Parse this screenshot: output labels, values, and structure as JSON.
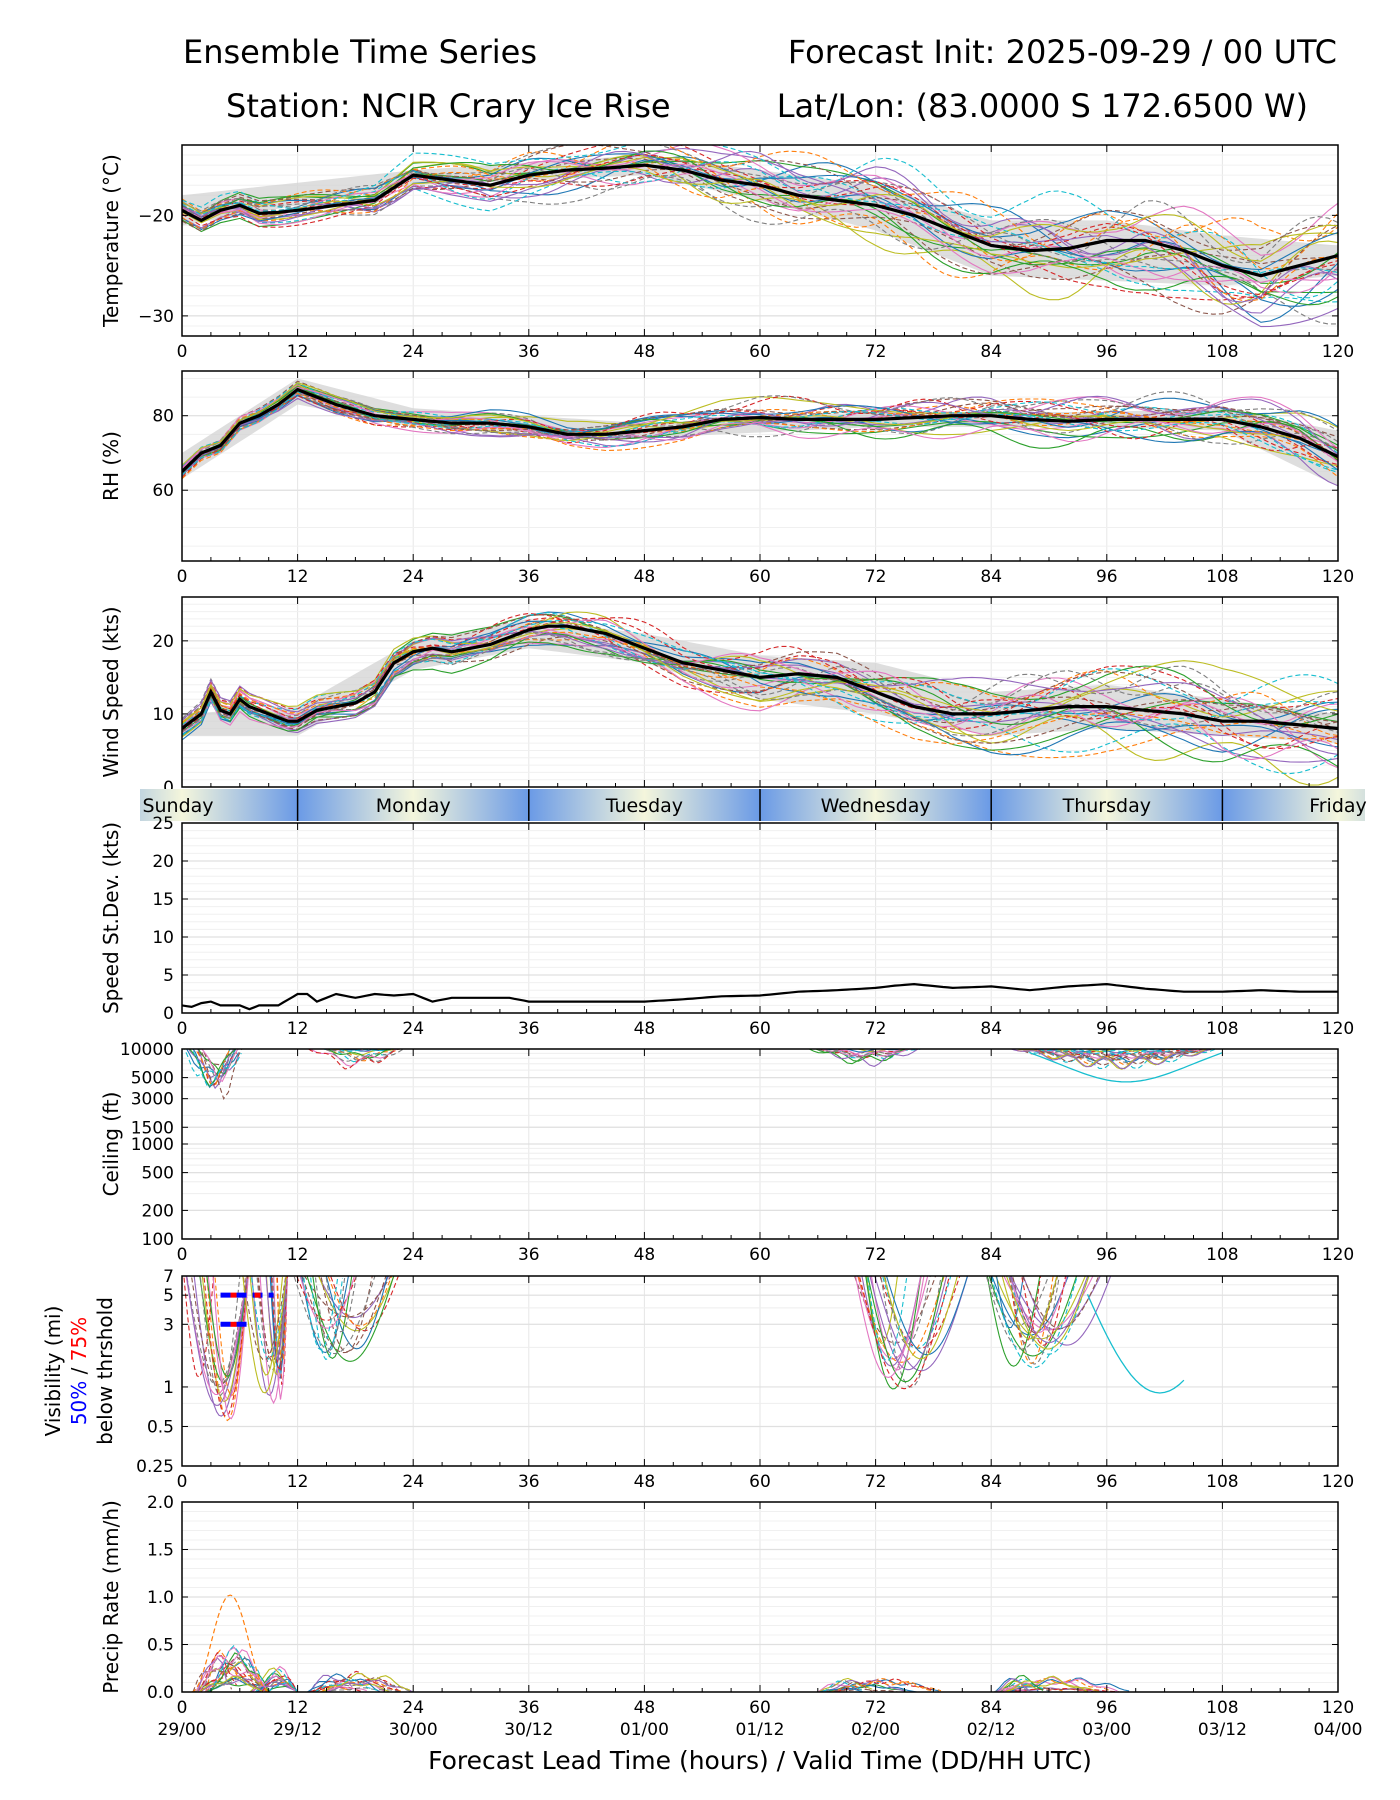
{
  "header": {
    "title": "Ensemble Time Series",
    "init": "Forecast Init: 2025-09-29 / 00 UTC",
    "station": "Station: NCIR Crary Ice Rise",
    "latlon": "Lat/Lon: (83.0000 S 172.6500 W)"
  },
  "colors": {
    "members": [
      "#1f77b4",
      "#ff7f0e",
      "#2ca02c",
      "#d62728",
      "#9467bd",
      "#8c564b",
      "#e377c2",
      "#7f7f7f",
      "#bcbd22",
      "#17becf"
    ],
    "mean": "#000000",
    "spread": "#d3d3d3",
    "day_blue": "#6a9ae6",
    "day_cream": "#f4f6dc",
    "vis50": "#0000ff",
    "vis75": "#ff0000"
  },
  "days": [
    {
      "label": "Sunday",
      "start": -12,
      "end": 12
    },
    {
      "label": "Monday",
      "start": 12,
      "end": 36
    },
    {
      "label": "Tuesday",
      "start": 36,
      "end": 60
    },
    {
      "label": "Wednesday",
      "start": 60,
      "end": 84
    },
    {
      "label": "Thursday",
      "start": 84,
      "end": 108
    },
    {
      "label": "Friday",
      "start": 108,
      "end": 132
    }
  ],
  "chart_data": [
    {
      "type": "line",
      "ylabel": "Temperature (°C)",
      "xlim": [
        0,
        120
      ],
      "ylim": [
        -32,
        -13
      ],
      "yticks": [
        -30,
        -20
      ],
      "ytick_labels": [
        "−30",
        "−20"
      ],
      "ensemble_members": 30,
      "mean": {
        "x": [
          0,
          2,
          4,
          6,
          8,
          10,
          12,
          16,
          20,
          24,
          28,
          32,
          36,
          40,
          44,
          48,
          52,
          56,
          60,
          64,
          68,
          72,
          76,
          80,
          84,
          88,
          92,
          96,
          100,
          104,
          108,
          112,
          116,
          120
        ],
        "y": [
          -19.5,
          -20.5,
          -19.5,
          -19,
          -19.8,
          -19.7,
          -19.5,
          -19,
          -18.5,
          -16,
          -16.5,
          -17,
          -16,
          -15.5,
          -15.3,
          -15,
          -15.5,
          -16.5,
          -17,
          -18,
          -18.5,
          -19,
          -20,
          -21.5,
          -23,
          -23.5,
          -23.3,
          -22.5,
          -22.5,
          -23.5,
          -25,
          -26,
          -25,
          -24
        ]
      },
      "spread": {
        "x": [
          0,
          24,
          48,
          60,
          72,
          84,
          96,
          108,
          120
        ],
        "low": [
          -21,
          -17,
          -16,
          -18.5,
          -21.5,
          -26,
          -26.5,
          -27,
          -26
        ],
        "high": [
          -18,
          -15.5,
          -14,
          -15.5,
          -17,
          -20.5,
          -20.5,
          -22,
          -23
        ]
      }
    },
    {
      "type": "line",
      "ylabel": "RH (%)",
      "xlim": [
        0,
        120
      ],
      "ylim": [
        41,
        92
      ],
      "yticks": [
        60,
        80
      ],
      "ensemble_members": 30,
      "mean": {
        "x": [
          0,
          2,
          4,
          6,
          8,
          10,
          12,
          16,
          20,
          24,
          28,
          32,
          36,
          40,
          44,
          48,
          52,
          56,
          60,
          64,
          68,
          72,
          76,
          80,
          84,
          88,
          92,
          96,
          100,
          104,
          108,
          112,
          116,
          120
        ],
        "y": [
          65,
          70,
          72,
          78,
          80,
          83,
          87,
          83,
          80,
          79,
          78,
          78,
          77,
          75,
          75,
          76,
          77,
          79,
          79.5,
          79,
          79,
          79,
          79.5,
          80,
          80,
          79,
          78.5,
          79,
          79,
          79,
          79,
          77,
          74,
          69
        ]
      },
      "spread": {
        "x": [
          0,
          12,
          24,
          48,
          72,
          96,
          108,
          120
        ],
        "low": [
          63,
          83,
          77,
          74,
          77,
          77,
          76,
          61
        ],
        "high": [
          70,
          90,
          82,
          78,
          81,
          81,
          82,
          76
        ]
      }
    },
    {
      "type": "line",
      "ylabel": "Wind Speed (kts)",
      "xlim": [
        0,
        120
      ],
      "ylim": [
        0,
        26
      ],
      "yticks": [
        0,
        10,
        20
      ],
      "ensemble_members": 30,
      "mean": {
        "x": [
          0,
          1,
          2,
          3,
          4,
          5,
          6,
          7,
          8,
          9,
          10,
          11,
          12,
          14,
          16,
          18,
          20,
          22,
          24,
          26,
          28,
          30,
          32,
          34,
          36,
          38,
          40,
          42,
          44,
          46,
          48,
          52,
          56,
          60,
          64,
          68,
          72,
          76,
          80,
          84,
          88,
          92,
          96,
          100,
          104,
          108,
          112,
          116,
          120
        ],
        "y": [
          8,
          9,
          10,
          13,
          10.5,
          10,
          12,
          11,
          10.5,
          10,
          9.5,
          9,
          9,
          10.5,
          11,
          11.5,
          13,
          17,
          18.5,
          19,
          18.5,
          19,
          19.5,
          20.5,
          21.5,
          22,
          22,
          21.5,
          21,
          20,
          19,
          17,
          16,
          15,
          15.5,
          15,
          13,
          11,
          10,
          10,
          10.5,
          11,
          11,
          10.5,
          10,
          9,
          9,
          8.5,
          8
        ]
      },
      "spread": {
        "x": [
          0,
          12,
          24,
          36,
          48,
          60,
          72,
          84,
          96,
          108,
          120
        ],
        "low": [
          7,
          7,
          16,
          19,
          17,
          12,
          10,
          7,
          8,
          7,
          6
        ],
        "high": [
          10,
          11,
          20,
          23,
          21,
          18,
          17,
          13,
          14,
          12,
          10
        ]
      }
    },
    {
      "type": "line",
      "ylabel": "Speed St.Dev. (kts)",
      "xlim": [
        0,
        120
      ],
      "ylim": [
        0,
        25
      ],
      "yticks": [
        0,
        5,
        10,
        15,
        20,
        25
      ],
      "mean": {
        "x": [
          0,
          1,
          2,
          3,
          4,
          6,
          7,
          8,
          10,
          12,
          13,
          14,
          16,
          18,
          20,
          22,
          24,
          26,
          28,
          30,
          32,
          34,
          36,
          40,
          44,
          48,
          52,
          56,
          60,
          64,
          68,
          72,
          74,
          76,
          80,
          84,
          88,
          92,
          96,
          100,
          104,
          108,
          112,
          116,
          120
        ],
        "y": [
          1,
          0.8,
          1.3,
          1.5,
          1,
          1,
          0.5,
          1,
          1,
          2.5,
          2.5,
          1.5,
          2.5,
          2,
          2.5,
          2.3,
          2.5,
          1.5,
          2,
          2,
          2,
          2,
          1.5,
          1.5,
          1.5,
          1.5,
          1.8,
          2.2,
          2.3,
          2.8,
          3,
          3.3,
          3.6,
          3.8,
          3.3,
          3.5,
          3,
          3.5,
          3.8,
          3.2,
          2.8,
          2.8,
          3,
          2.8,
          2.8
        ]
      }
    },
    {
      "type": "line",
      "ylabel": "Ceiling (ft)",
      "yscale": "log",
      "xlim": [
        0,
        120
      ],
      "ylim": [
        100,
        10000
      ],
      "yticks": [
        100,
        200,
        500,
        1000,
        1500,
        3000,
        5000,
        10000
      ],
      "ensemble_members": 30,
      "note": "members shown only where ceiling < 10000 ft"
    },
    {
      "type": "line",
      "ylabel": "Visibility (mi)",
      "ylabel_50": "50%",
      "ylabel_sep": " / ",
      "ylabel_75": "75%",
      "ylabel_2": "below thrshold",
      "yscale": "log",
      "xlim": [
        0,
        120
      ],
      "ylim": [
        0.25,
        7
      ],
      "yticks": [
        0.25,
        0.5,
        1,
        3,
        5,
        7
      ],
      "ensemble_members": 30,
      "threshold_markers": [
        {
          "x": [
            4,
            9.5
          ],
          "y": 5
        },
        {
          "x": [
            4,
            7
          ],
          "y": 3
        }
      ]
    },
    {
      "type": "line",
      "ylabel": "Precip Rate (mm/h)",
      "xlim": [
        0,
        120
      ],
      "ylim": [
        0,
        2.0
      ],
      "yticks": [
        0.0,
        0.5,
        1.0,
        1.5,
        2.0
      ],
      "ytick_labels": [
        "0.0",
        "0.5",
        "1.0",
        "1.5",
        "2.0"
      ],
      "ensemble_members": 30,
      "xticks": [
        0,
        12,
        24,
        36,
        48,
        60,
        72,
        84,
        96,
        108,
        120
      ],
      "valid_times": [
        "29/00",
        "29/12",
        "30/00",
        "30/12",
        "01/00",
        "01/12",
        "02/00",
        "02/12",
        "03/00",
        "03/12",
        "04/00"
      ],
      "xlabel": "Forecast Lead Time (hours) / Valid Time (DD/HH UTC)"
    }
  ]
}
